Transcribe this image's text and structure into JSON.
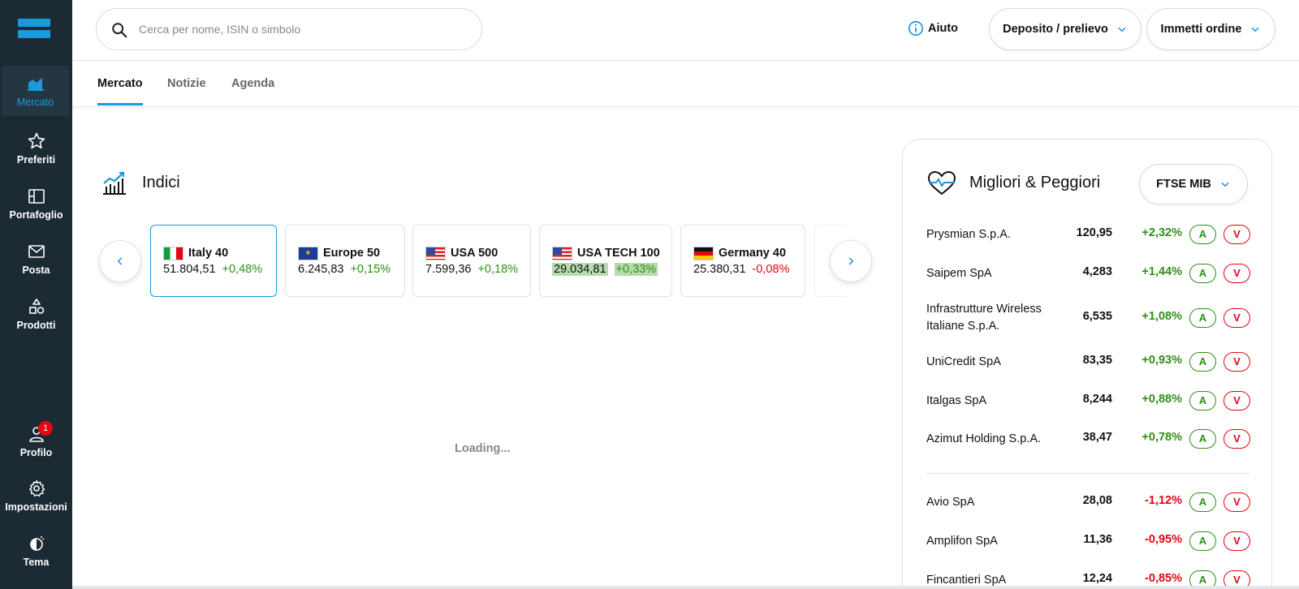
{
  "sidebar": {
    "items": [
      {
        "label": "Mercato",
        "icon": "chart-icon",
        "active": true
      },
      {
        "label": "Preferiti",
        "icon": "star-icon"
      },
      {
        "label": "Portafoglio",
        "icon": "portfolio-icon"
      },
      {
        "label": "Posta",
        "icon": "mail-icon"
      },
      {
        "label": "Prodotti",
        "icon": "shapes-icon"
      },
      {
        "label": "Profilo",
        "icon": "user-icon",
        "badge": "1"
      },
      {
        "label": "Impostazioni",
        "icon": "gear-icon"
      },
      {
        "label": "Tema",
        "icon": "theme-icon"
      }
    ]
  },
  "header": {
    "search_placeholder": "Cerca per nome, ISIN o simbolo",
    "help_label": "Aiuto",
    "deposit_label": "Deposito / prelievo",
    "order_label": "Immetti ordine"
  },
  "tabs": [
    "Mercato",
    "Notizie",
    "Agenda"
  ],
  "indices": {
    "title": "Indici",
    "loading": "Loading...",
    "cards": [
      {
        "name": "Italy 40",
        "value": "51.804,51",
        "change": "+0,48%",
        "flag": "italy"
      },
      {
        "name": "Europe 50",
        "value": "6.245,83",
        "change": "+0,15%",
        "flag": "eu"
      },
      {
        "name": "USA 500",
        "value": "7.599,36",
        "change": "+0,18%",
        "flag": "usa"
      },
      {
        "name": "USA TECH 100",
        "value": "29.034,81",
        "change": "+0,33%",
        "flag": "usa"
      },
      {
        "name": "Germany 40",
        "value": "25.380,31",
        "change": "-0,08%",
        "flag": "germany"
      }
    ]
  },
  "movers": {
    "title": "Migliori & Peggiori",
    "index_select": "FTSE MIB",
    "buy_label": "A",
    "sell_label": "V",
    "rows": [
      {
        "name": "Prysmian S.p.A.",
        "price": "120,95",
        "change": "+2,32%"
      },
      {
        "name": "Saipem SpA",
        "price": "4,283",
        "change": "+1,44%"
      },
      {
        "name": "Infrastrutture Wireless Italiane S.p.A.",
        "price": "6,535",
        "change": "+1,08%"
      },
      {
        "name": "UniCredit SpA",
        "price": "83,35",
        "change": "+0,93%"
      },
      {
        "name": "Italgas SpA",
        "price": "8,244",
        "change": "+0,88%"
      },
      {
        "name": "Azimut Holding S.p.A.",
        "price": "38,47",
        "change": "+0,78%"
      },
      {
        "name": "Avio SpA",
        "price": "28,08",
        "change": "-1,12%"
      },
      {
        "name": "Amplifon SpA",
        "price": "11,36",
        "change": "-0,95%"
      },
      {
        "name": "Fincantieri SpA",
        "price": "12,24",
        "change": "-0,85%"
      }
    ]
  },
  "colors": {
    "accent": "#1a9ad9",
    "positive": "#2e8f16",
    "negative": "#e30613",
    "sidebar": "#1c2a34"
  }
}
